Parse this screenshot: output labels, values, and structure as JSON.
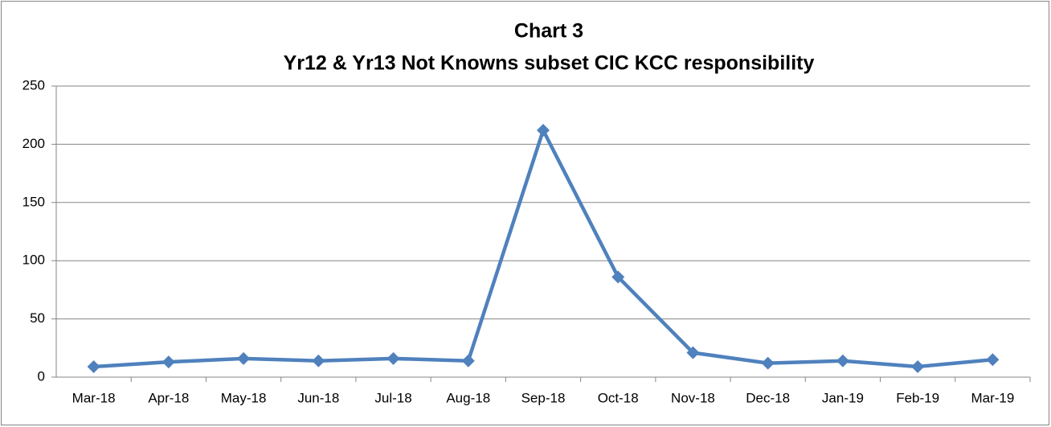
{
  "chart_data": {
    "type": "line",
    "title": "Chart 3",
    "subtitle": "Yr12 & Yr13 Not Knowns subset CIC KCC responsibility",
    "categories": [
      "Mar-18",
      "Apr-18",
      "May-18",
      "Jun-18",
      "Jul-18",
      "Aug-18",
      "Sep-18",
      "Oct-18",
      "Nov-18",
      "Dec-18",
      "Jan-19",
      "Feb-19",
      "Mar-19"
    ],
    "values": [
      9,
      13,
      16,
      14,
      16,
      14,
      212,
      86,
      21,
      12,
      14,
      9,
      15
    ],
    "color": "#4f81bd",
    "ylim": [
      0,
      250
    ],
    "yticks": [
      0,
      50,
      100,
      150,
      200,
      250
    ],
    "grid": true
  }
}
